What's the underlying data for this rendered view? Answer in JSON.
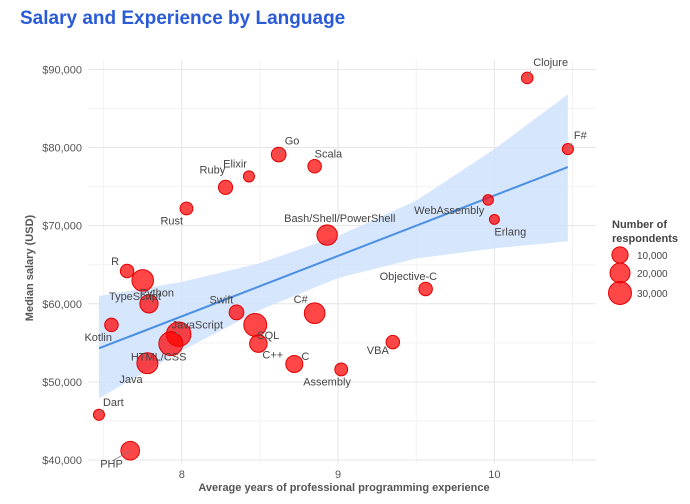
{
  "chart_data": {
    "type": "scatter",
    "title": "Salary and Experience by Language",
    "xlabel": "Average years of professional programming experience",
    "ylabel": "Median salary (USD)",
    "xlim": [
      7.4,
      10.65
    ],
    "ylim": [
      39500,
      91200
    ],
    "x_ticks": [
      8,
      9,
      10
    ],
    "y_ticks": [
      40000,
      50000,
      60000,
      70000,
      80000,
      90000
    ],
    "y_tick_labels": [
      "$40,000",
      "$50,000",
      "$60,000",
      "$70,000",
      "$80,000",
      "$90,000"
    ],
    "x_tick_labels": [
      "8",
      "9",
      "10"
    ],
    "point_color": "#ff0000",
    "trend_color": "#4a90e2",
    "band_color": "#cfe2fb",
    "grid": true,
    "trend_line": {
      "x": [
        7.47,
        10.47
      ],
      "y": [
        54300,
        77500
      ]
    },
    "confidence_band": {
      "x": [
        7.47,
        8.0,
        8.5,
        9.0,
        9.5,
        10.0,
        10.47
      ],
      "upper": [
        61000,
        62800,
        65200,
        68700,
        73200,
        79800,
        86800
      ],
      "lower": [
        47900,
        54000,
        59200,
        63300,
        65800,
        67100,
        68000
      ]
    },
    "points": [
      {
        "label": "Clojure",
        "x": 10.21,
        "y": 88900,
        "n": 2500
      },
      {
        "label": "F#",
        "x": 10.47,
        "y": 79800,
        "n": 2000
      },
      {
        "label": "Go",
        "x": 8.62,
        "y": 79100,
        "n": 7000
      },
      {
        "label": "Scala",
        "x": 8.85,
        "y": 77600,
        "n": 5000
      },
      {
        "label": "Elixir",
        "x": 8.43,
        "y": 76300,
        "n": 2000
      },
      {
        "label": "Ruby",
        "x": 8.28,
        "y": 74900,
        "n": 6000
      },
      {
        "label": "WebAssembly",
        "x": 9.96,
        "y": 73300,
        "n": 1500
      },
      {
        "label": "Rust",
        "x": 8.03,
        "y": 72200,
        "n": 4000
      },
      {
        "label": "Erlang",
        "x": 10.0,
        "y": 70800,
        "n": 1000
      },
      {
        "label": "Bash/Shell/PowerShell",
        "x": 8.93,
        "y": 68800,
        "n": 21000
      },
      {
        "label": "R",
        "x": 7.65,
        "y": 64200,
        "n": 5000
      },
      {
        "label": "Python",
        "x": 7.75,
        "y": 63000,
        "n": 25000
      },
      {
        "label": "Objective-C",
        "x": 9.56,
        "y": 61900,
        "n": 5000
      },
      {
        "label": "Swift",
        "x": 8.35,
        "y": 58900,
        "n": 7000
      },
      {
        "label": "TypeScript",
        "x": 7.79,
        "y": 60000,
        "n": 15000
      },
      {
        "label": "C#",
        "x": 8.85,
        "y": 58800,
        "n": 22000
      },
      {
        "label": "Kotlin",
        "x": 7.55,
        "y": 57300,
        "n": 5000
      },
      {
        "label": "JavaScript",
        "x": 7.98,
        "y": 56100,
        "n": 36000
      },
      {
        "label": "SQL",
        "x": 8.47,
        "y": 57300,
        "n": 30000
      },
      {
        "label": "HTML/CSS",
        "x": 7.93,
        "y": 54900,
        "n": 34000
      },
      {
        "label": "VBA",
        "x": 9.35,
        "y": 55100,
        "n": 5000
      },
      {
        "label": "C++",
        "x": 8.49,
        "y": 54900,
        "n": 13000
      },
      {
        "label": "C",
        "x": 8.72,
        "y": 52300,
        "n": 12000
      },
      {
        "label": "Java",
        "x": 7.78,
        "y": 52400,
        "n": 23000
      },
      {
        "label": "Assembly",
        "x": 9.02,
        "y": 51600,
        "n": 4000
      },
      {
        "label": "Dart",
        "x": 7.47,
        "y": 45800,
        "n": 2000
      },
      {
        "label": "PHP",
        "x": 7.67,
        "y": 41200,
        "n": 16000
      }
    ],
    "legend": {
      "title_line1": "Number of",
      "title_line2": "respondents",
      "placement": "right",
      "entries": [
        {
          "label": "10,000",
          "n": 10000
        },
        {
          "label": "20,000",
          "n": 20000
        },
        {
          "label": "30,000",
          "n": 30000
        }
      ]
    }
  }
}
